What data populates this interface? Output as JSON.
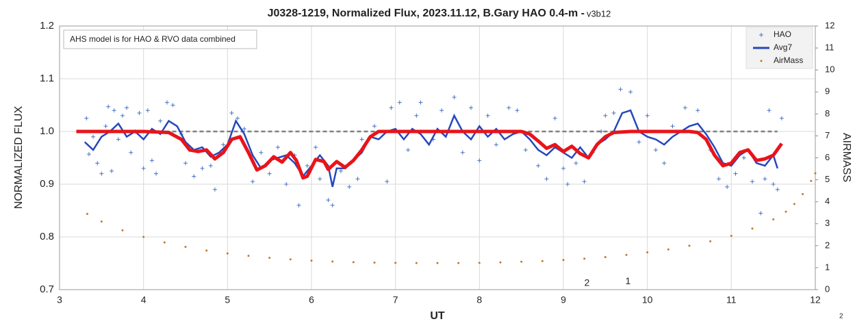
{
  "chart_data": {
    "type": "scatter",
    "title": "J0328-1219, Normalized Flux, 2023.11.12, B.Gary HAO 0.4-m - ",
    "subtitle": "v3b12",
    "annotation": "AHS model is for HAO & RVO data combined",
    "marks": [
      {
        "text": "2",
        "x": 9.28,
        "y": 0.712
      },
      {
        "text": "1",
        "x": 9.77,
        "y": 0.715
      }
    ],
    "page_number": "2",
    "x_label": "UT",
    "y_label": "NORMALIZED FLUX",
    "y2_label": "AIRMASS",
    "xlim": [
      3,
      12
    ],
    "xticks": [
      3,
      4,
      5,
      6,
      7,
      8,
      9,
      10,
      11,
      12
    ],
    "ylim": [
      0.7,
      1.2
    ],
    "yticks": [
      0.7,
      0.8,
      0.9,
      {
        "value": 1.0,
        "label": "1.0"
      },
      1.1,
      1.2
    ],
    "y2lim": [
      0,
      12
    ],
    "y2ticks": [
      0,
      1,
      2,
      3,
      4,
      5,
      6,
      7,
      8,
      9,
      10,
      11,
      12
    ],
    "grid": true,
    "legend": "top-right",
    "series": [
      {
        "name": "HAO",
        "color": "#4472c4",
        "style": "plus",
        "x": [
          3.32,
          3.35,
          3.4,
          3.45,
          3.5,
          3.55,
          3.58,
          3.62,
          3.65,
          3.7,
          3.75,
          3.8,
          3.85,
          3.9,
          3.95,
          4.0,
          4.05,
          4.1,
          4.15,
          4.2,
          4.28,
          4.35,
          4.45,
          4.5,
          4.55,
          4.6,
          4.7,
          4.8,
          4.85,
          4.95,
          5.05,
          5.12,
          5.2,
          5.3,
          5.4,
          5.5,
          5.6,
          5.7,
          5.8,
          5.85,
          5.95,
          6.05,
          6.1,
          6.2,
          6.25,
          6.35,
          6.45,
          6.55,
          6.6,
          6.75,
          6.9,
          6.95,
          7.05,
          7.15,
          7.25,
          7.3,
          7.45,
          7.55,
          7.7,
          7.8,
          7.9,
          8.0,
          8.1,
          8.2,
          8.35,
          8.45,
          8.55,
          8.7,
          8.8,
          8.9,
          9.0,
          9.05,
          9.15,
          9.25,
          9.35,
          9.45,
          9.5,
          9.6,
          9.68,
          9.8,
          9.9,
          10.0,
          10.1,
          10.2,
          10.3,
          10.45,
          10.6,
          10.75,
          10.85,
          10.95,
          11.05,
          11.15,
          11.25,
          11.35,
          11.4,
          11.45,
          11.5,
          11.55,
          11.6
        ],
        "values": [
          1.025,
          0.957,
          0.99,
          0.94,
          0.92,
          1.01,
          1.047,
          0.925,
          1.04,
          0.985,
          1.03,
          1.045,
          0.96,
          1.0,
          1.035,
          0.93,
          1.04,
          0.945,
          0.92,
          1.02,
          1.055,
          1.05,
          0.995,
          0.94,
          0.965,
          0.915,
          0.93,
          0.935,
          0.89,
          0.975,
          1.035,
          1.025,
          1.005,
          0.905,
          0.96,
          0.92,
          0.97,
          0.9,
          0.955,
          0.86,
          0.935,
          0.97,
          0.91,
          0.87,
          0.86,
          0.925,
          0.895,
          0.91,
          0.985,
          1.01,
          0.905,
          1.045,
          1.055,
          0.965,
          1.03,
          1.055,
          0.985,
          1.04,
          1.065,
          0.96,
          1.045,
          0.945,
          1.03,
          0.975,
          1.045,
          1.04,
          0.965,
          0.935,
          0.91,
          1.025,
          0.93,
          0.9,
          0.94,
          0.905,
          0.96,
          1.0,
          1.03,
          1.035,
          1.08,
          1.075,
          0.98,
          1.03,
          0.965,
          0.94,
          1.01,
          1.045,
          1.04,
          0.965,
          0.91,
          0.895,
          0.92,
          0.95,
          0.905,
          0.845,
          0.91,
          1.04,
          0.9,
          0.89,
          1.025
        ]
      },
      {
        "name": "Avg7",
        "color": "#2447bd",
        "style": "line",
        "x": [
          3.3,
          3.4,
          3.5,
          3.6,
          3.7,
          3.8,
          3.9,
          4.0,
          4.1,
          4.2,
          4.3,
          4.4,
          4.5,
          4.6,
          4.7,
          4.8,
          4.9,
          5.0,
          5.1,
          5.2,
          5.3,
          5.4,
          5.5,
          5.6,
          5.7,
          5.8,
          5.9,
          6.0,
          6.1,
          6.2,
          6.25,
          6.3,
          6.4,
          6.5,
          6.6,
          6.7,
          6.8,
          6.9,
          7.0,
          7.1,
          7.2,
          7.3,
          7.4,
          7.5,
          7.6,
          7.7,
          7.8,
          7.9,
          8.0,
          8.1,
          8.2,
          8.3,
          8.4,
          8.5,
          8.6,
          8.7,
          8.8,
          8.9,
          9.0,
          9.1,
          9.2,
          9.3,
          9.4,
          9.5,
          9.6,
          9.7,
          9.8,
          9.9,
          10.0,
          10.1,
          10.2,
          10.3,
          10.4,
          10.5,
          10.6,
          10.7,
          10.8,
          10.9,
          11.0,
          11.1,
          11.2,
          11.3,
          11.4,
          11.5,
          11.55
        ],
        "values": [
          0.98,
          0.965,
          0.99,
          1.0,
          1.015,
          0.99,
          1.0,
          0.985,
          1.005,
          0.995,
          1.02,
          1.01,
          0.98,
          0.965,
          0.97,
          0.952,
          0.96,
          0.975,
          1.02,
          0.995,
          0.955,
          0.93,
          0.945,
          0.95,
          0.955,
          0.94,
          0.915,
          0.935,
          0.955,
          0.935,
          0.895,
          0.93,
          0.93,
          0.945,
          0.96,
          0.99,
          0.985,
          1.0,
          1.005,
          0.985,
          1.005,
          0.995,
          0.975,
          1.005,
          0.99,
          1.03,
          1.0,
          0.985,
          1.01,
          0.99,
          1.005,
          0.985,
          0.995,
          1.0,
          0.985,
          0.965,
          0.955,
          0.97,
          0.96,
          0.95,
          0.97,
          0.95,
          0.975,
          0.985,
          1.0,
          1.035,
          1.04,
          1.0,
          0.99,
          0.985,
          0.975,
          0.99,
          1.0,
          1.01,
          1.015,
          0.995,
          0.97,
          0.94,
          0.935,
          0.955,
          0.965,
          0.94,
          0.935,
          0.955,
          0.93
        ]
      },
      {
        "name": "AirMass",
        "color": "#c0782e",
        "style": "dot",
        "axis": "y2",
        "x": [
          3.33,
          3.5,
          3.75,
          4.0,
          4.25,
          4.5,
          4.75,
          5.0,
          5.25,
          5.5,
          5.75,
          6.0,
          6.25,
          6.5,
          6.75,
          7.0,
          7.25,
          7.5,
          7.75,
          8.0,
          8.25,
          8.5,
          8.75,
          9.0,
          9.25,
          9.5,
          9.75,
          10.0,
          10.25,
          10.5,
          10.75,
          11.0,
          11.25,
          11.5,
          11.65,
          11.75,
          11.85,
          11.95,
          12.0
        ],
        "values": [
          3.45,
          3.1,
          2.7,
          2.4,
          2.15,
          1.95,
          1.78,
          1.65,
          1.54,
          1.45,
          1.38,
          1.32,
          1.28,
          1.25,
          1.23,
          1.22,
          1.21,
          1.21,
          1.21,
          1.22,
          1.24,
          1.27,
          1.3,
          1.35,
          1.41,
          1.48,
          1.58,
          1.7,
          1.83,
          2.0,
          2.2,
          2.45,
          2.78,
          3.2,
          3.55,
          3.9,
          4.35,
          4.95,
          5.3
        ]
      }
    ],
    "model": {
      "color": "#e8141a",
      "x": [
        3.2,
        3.5,
        4.0,
        4.3,
        4.45,
        4.55,
        4.65,
        4.75,
        4.85,
        4.95,
        5.05,
        5.15,
        5.25,
        5.35,
        5.45,
        5.55,
        5.65,
        5.75,
        5.82,
        5.9,
        5.95,
        6.05,
        6.15,
        6.2,
        6.3,
        6.4,
        6.5,
        6.6,
        6.7,
        6.8,
        7.0,
        8.0,
        8.5,
        8.6,
        8.7,
        8.8,
        8.9,
        9.0,
        9.1,
        9.2,
        9.3,
        9.4,
        9.5,
        9.6,
        9.8,
        10.0,
        10.5,
        10.6,
        10.7,
        10.8,
        10.9,
        11.0,
        11.1,
        11.2,
        11.3,
        11.4,
        11.5,
        11.6
      ],
      "values": [
        1.0,
        1.0,
        1.0,
        0.998,
        0.985,
        0.965,
        0.962,
        0.965,
        0.948,
        0.96,
        0.985,
        0.99,
        0.96,
        0.927,
        0.935,
        0.952,
        0.942,
        0.96,
        0.945,
        0.912,
        0.915,
        0.947,
        0.943,
        0.928,
        0.943,
        0.932,
        0.945,
        0.965,
        0.99,
        1.0,
        1.0,
        1.0,
        1.0,
        0.995,
        0.982,
        0.968,
        0.975,
        0.962,
        0.972,
        0.958,
        0.95,
        0.975,
        0.99,
        0.998,
        1.0,
        1.0,
        1.0,
        0.998,
        0.985,
        0.955,
        0.935,
        0.94,
        0.96,
        0.965,
        0.945,
        0.948,
        0.955,
        0.977
      ]
    },
    "baseline": {
      "color": "#808080",
      "x": [
        3.2,
        11.55
      ],
      "values": [
        1.0,
        1.0
      ]
    }
  }
}
